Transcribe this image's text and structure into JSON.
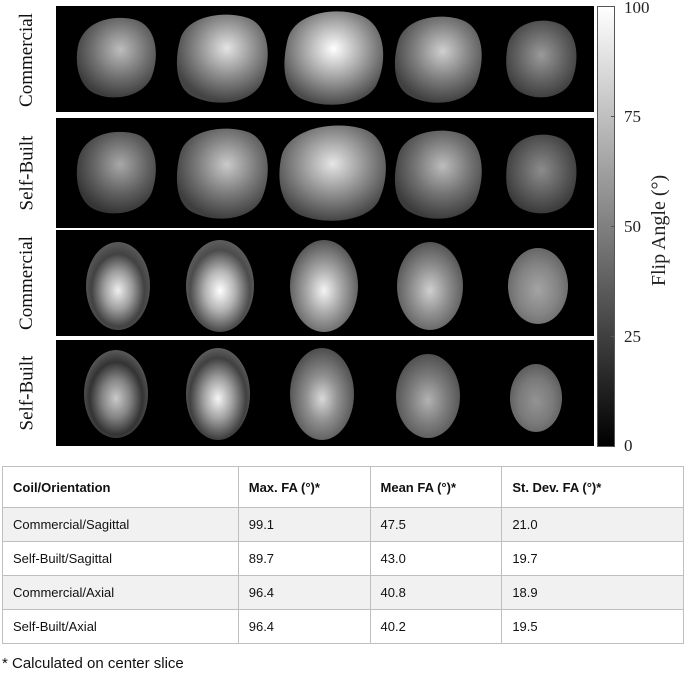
{
  "figure": {
    "rows": [
      {
        "label": "Commercial",
        "orientation": "sagittal"
      },
      {
        "label": "Self-Built",
        "orientation": "sagittal"
      },
      {
        "label": "Commercial",
        "orientation": "axial"
      },
      {
        "label": "Self-Built",
        "orientation": "axial"
      }
    ],
    "colorbar": {
      "label": "Flip Angle (°)",
      "ticks": [
        "100",
        "75",
        "50",
        "25",
        "0"
      ],
      "range": [
        0,
        100
      ]
    }
  },
  "table": {
    "headers": [
      "Coil/Orientation",
      "Max. FA (°)*",
      "Mean FA (°)*",
      "St. Dev. FA (°)*"
    ],
    "rows": [
      [
        "Commercial/Sagittal",
        "99.1",
        "47.5",
        "21.0"
      ],
      [
        "Self-Built/Sagittal",
        "89.7",
        "43.0",
        "19.7"
      ],
      [
        "Commercial/Axial",
        "96.4",
        "40.8",
        "18.9"
      ],
      [
        "Self-Built/Axial",
        "96.4",
        "40.2",
        "19.5"
      ]
    ]
  },
  "footnote": "* Calculated on center slice"
}
